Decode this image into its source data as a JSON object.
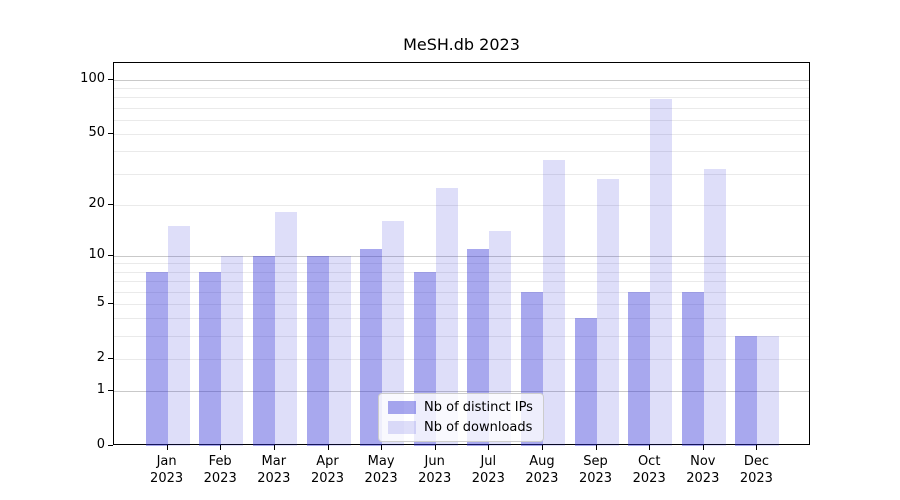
{
  "chart_data": {
    "type": "bar",
    "title": "MeSH.db 2023",
    "categories": [
      "Jan",
      "Feb",
      "Mar",
      "Apr",
      "May",
      "Jun",
      "Jul",
      "Aug",
      "Sep",
      "Oct",
      "Nov",
      "Dec"
    ],
    "category_year": "2023",
    "series": [
      {
        "name": "Nb of distinct IPs",
        "color": "rgba(47,47,215,0.42)",
        "values": [
          8,
          8,
          10,
          10,
          11,
          8,
          11,
          6,
          4,
          6,
          6,
          3
        ]
      },
      {
        "name": "Nb of downloads",
        "color": "rgba(47,47,215,0.16)",
        "values": [
          15,
          10,
          18,
          10,
          16,
          25,
          14,
          36,
          28,
          78,
          32,
          3
        ]
      }
    ],
    "yscale": "log1p",
    "ylim": [
      0,
      124
    ],
    "yticks": [
      0,
      1,
      2,
      5,
      10,
      20,
      50,
      100
    ],
    "minor_gridlines": [
      3,
      4,
      6,
      7,
      8,
      9,
      30,
      40,
      60,
      70,
      80,
      90
    ],
    "emphasized_gridlines": [
      1,
      10,
      100
    ],
    "grid_color": "#eaeaea",
    "grid_color_emphasized": "#c9c9c9",
    "axis_color": "#000000",
    "legend_position": "lower center",
    "xlabel": "",
    "ylabel": ""
  }
}
